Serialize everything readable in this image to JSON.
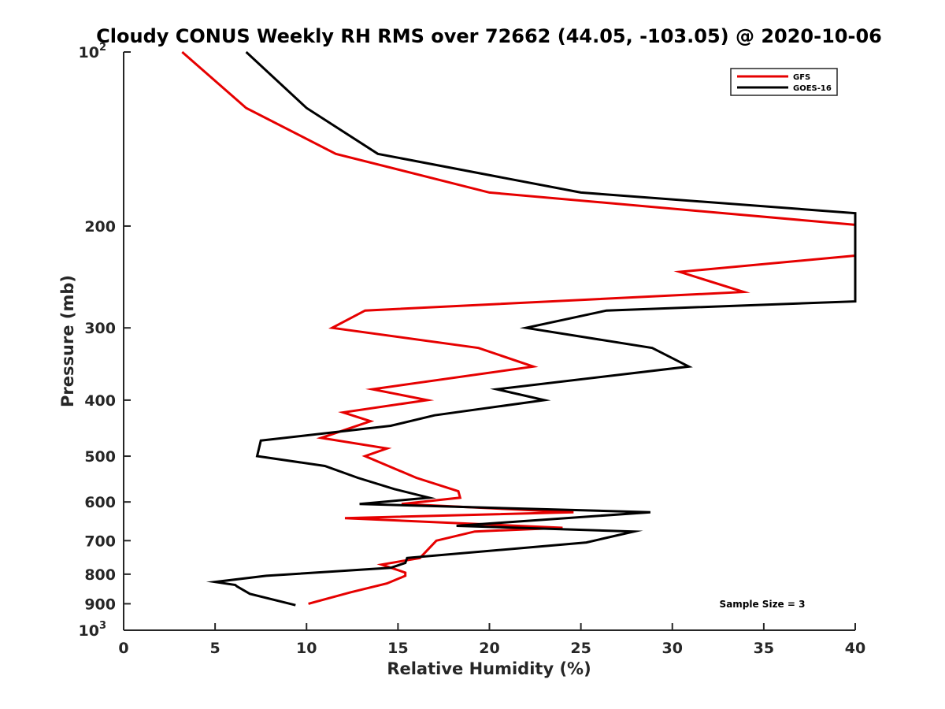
{
  "chart_data": {
    "type": "line",
    "title": "Cloudy CONUS Weekly RH RMS over 72662 (44.05, -103.05) @ 2020-10-06",
    "xlabel": "Relative Humidity (%)",
    "ylabel": "Pressure (mb)",
    "xlim": [
      0,
      40
    ],
    "ylim": [
      100,
      1000
    ],
    "y_scale": "log",
    "y_reversed": true,
    "x_ticks": [
      "0",
      "5",
      "10",
      "15",
      "20",
      "25",
      "30",
      "35",
      "40"
    ],
    "y_ticks": [
      {
        "value": 100,
        "base": "10",
        "exp": "2"
      },
      {
        "value": 200,
        "label": "200"
      },
      {
        "value": 300,
        "label": "300"
      },
      {
        "value": 400,
        "label": "400"
      },
      {
        "value": 500,
        "label": "500"
      },
      {
        "value": 600,
        "label": "600"
      },
      {
        "value": 700,
        "label": "700"
      },
      {
        "value": 800,
        "label": "800"
      },
      {
        "value": 900,
        "label": "900"
      },
      {
        "value": 1000,
        "base": "10",
        "exp": "3"
      }
    ],
    "legend_position": "top-right",
    "annotation": "Sample Size = 3",
    "series": [
      {
        "name": "GFS",
        "color": "#e60000",
        "points": [
          [
            3.2,
            100
          ],
          [
            6.7,
            125
          ],
          [
            11.6,
            150
          ],
          [
            20.0,
            175
          ],
          [
            40.0,
            199
          ],
          [
            40.0,
            225
          ],
          [
            30.4,
            240
          ],
          [
            33.9,
            260
          ],
          [
            13.2,
            280
          ],
          [
            11.4,
            300
          ],
          [
            19.4,
            325
          ],
          [
            22.4,
            350
          ],
          [
            13.6,
            383
          ],
          [
            16.6,
            400
          ],
          [
            12.0,
            420
          ],
          [
            13.5,
            435
          ],
          [
            10.8,
            465
          ],
          [
            14.4,
            485
          ],
          [
            13.2,
            500
          ],
          [
            16.0,
            545
          ],
          [
            18.3,
            575
          ],
          [
            18.4,
            590
          ],
          [
            15.2,
            605
          ],
          [
            24.6,
            625
          ],
          [
            12.1,
            640
          ],
          [
            24.0,
            665
          ],
          [
            19.2,
            675
          ],
          [
            17.1,
            700
          ],
          [
            16.2,
            750
          ],
          [
            14.1,
            770
          ],
          [
            15.4,
            795
          ],
          [
            15.4,
            805
          ],
          [
            14.4,
            830
          ],
          [
            12.4,
            860
          ],
          [
            10.1,
            900
          ]
        ]
      },
      {
        "name": "GOES-16",
        "color": "#000000",
        "points": [
          [
            6.7,
            100
          ],
          [
            10.0,
            125
          ],
          [
            13.9,
            150
          ],
          [
            25.0,
            175
          ],
          [
            40.0,
            190
          ],
          [
            40.0,
            270
          ],
          [
            26.4,
            280
          ],
          [
            22.0,
            300
          ],
          [
            28.9,
            325
          ],
          [
            30.9,
            350
          ],
          [
            20.4,
            383
          ],
          [
            23.0,
            400
          ],
          [
            17.0,
            425
          ],
          [
            14.6,
            443
          ],
          [
            7.5,
            470
          ],
          [
            7.3,
            500
          ],
          [
            11.0,
            520
          ],
          [
            12.8,
            545
          ],
          [
            14.8,
            570
          ],
          [
            16.7,
            590
          ],
          [
            12.9,
            605
          ],
          [
            28.8,
            625
          ],
          [
            18.2,
            660
          ],
          [
            27.9,
            675
          ],
          [
            25.3,
            705
          ],
          [
            15.5,
            750
          ],
          [
            15.4,
            765
          ],
          [
            14.6,
            780
          ],
          [
            7.8,
            805
          ],
          [
            5.0,
            825
          ],
          [
            6.1,
            835
          ],
          [
            6.2,
            840
          ],
          [
            6.9,
            865
          ],
          [
            9.4,
            905
          ]
        ]
      }
    ]
  }
}
